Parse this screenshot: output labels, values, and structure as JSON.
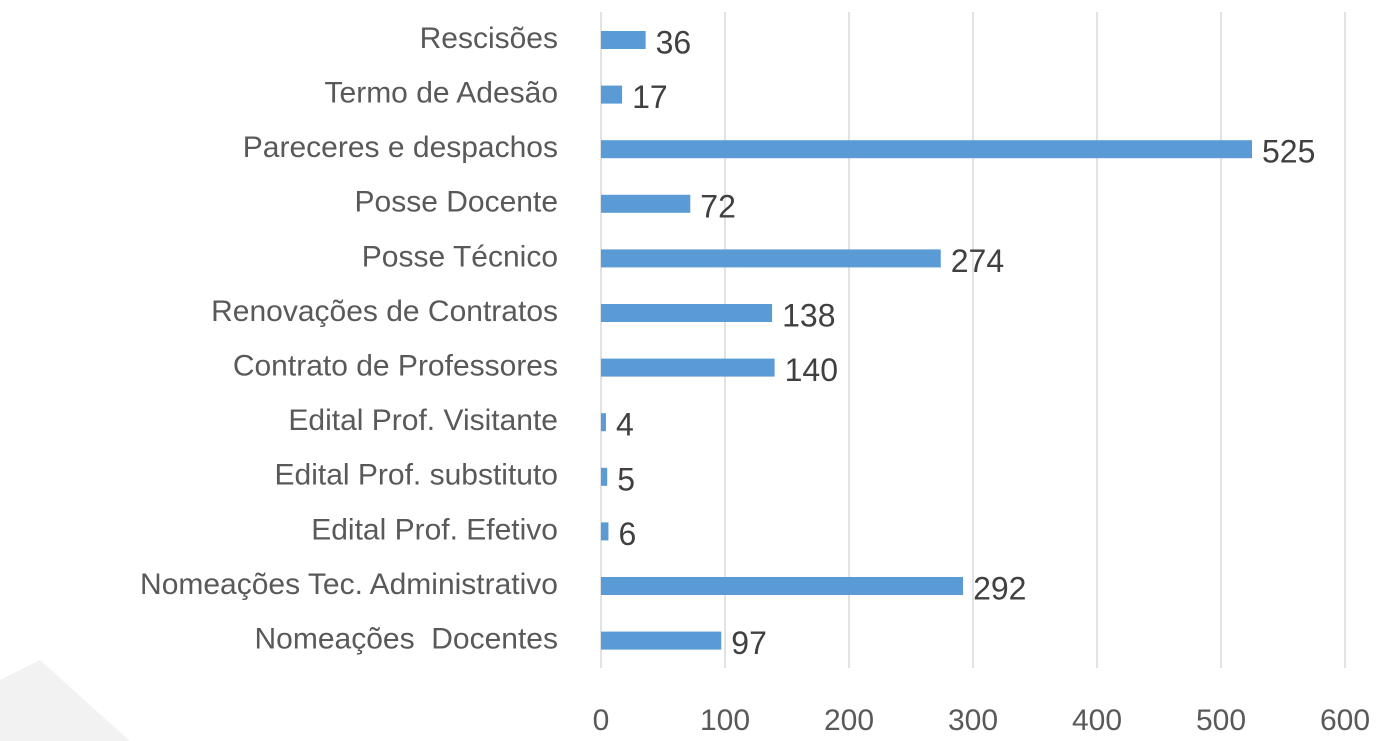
{
  "chart_data": {
    "type": "bar",
    "orientation": "horizontal",
    "categories": [
      "Rescisões",
      "Termo de Adesão",
      "Pareceres e despachos",
      "Posse Docente",
      "Posse Técnico",
      "Renovações de Contratos",
      "Contrato de Professores",
      "Edital Prof. Visitante",
      "Edital Prof. substituto",
      "Edital Prof. Efetivo",
      "Nomeações Tec. Administrativo",
      "Nomeações  Docentes"
    ],
    "values": [
      36,
      17,
      525,
      72,
      274,
      138,
      140,
      4,
      5,
      6,
      292,
      97
    ],
    "color": "#5b9bd5",
    "xlim": [
      0,
      600
    ],
    "xticks": [
      0,
      100,
      200,
      300,
      400,
      500,
      600
    ],
    "grid": true
  }
}
